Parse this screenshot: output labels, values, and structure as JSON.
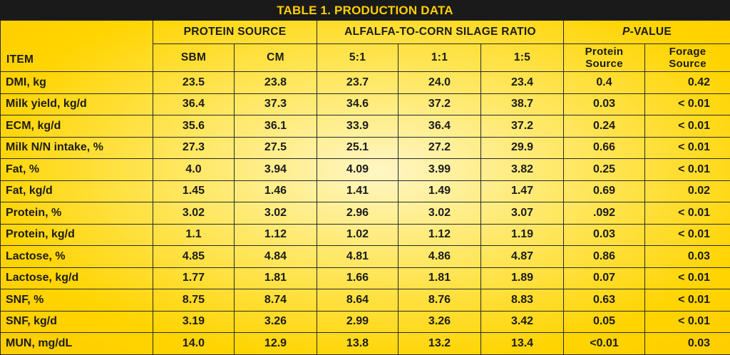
{
  "title": "TABLE 1. PRODUCTION DATA",
  "headers": {
    "item": "ITEM",
    "protein_source": "PROTEIN SOURCE",
    "ratio": "ALFALFA-TO-CORN SILAGE RATIO",
    "pvalue_p": "P",
    "pvalue_rest": "-VALUE",
    "sbm": "SBM",
    "cm": "CM",
    "r51": "5:1",
    "r11": "1:1",
    "r15": "1:5",
    "pv_protein_1": "Protein",
    "pv_protein_2": "Source",
    "pv_forage_1": "Forage",
    "pv_forage_2": "Source"
  },
  "rows": [
    [
      "DMI, kg",
      "23.5",
      "23.8",
      "23.7",
      "24.0",
      "23.4",
      "0.4",
      "0.42"
    ],
    [
      "Milk yield, kg/d",
      "36.4",
      "37.3",
      "34.6",
      "37.2",
      "38.7",
      "0.03",
      "< 0.01"
    ],
    [
      "ECM, kg/d",
      "35.6",
      "36.1",
      "33.9",
      "36.4",
      "37.2",
      "0.24",
      "< 0.01"
    ],
    [
      "Milk N/N intake, %",
      "27.3",
      "27.5",
      "25.1",
      "27.2",
      "29.9",
      "0.66",
      "< 0.01"
    ],
    [
      "Fat, %",
      "4.0",
      "3.94",
      "4.09",
      "3.99",
      "3.82",
      "0.25",
      "< 0.01"
    ],
    [
      "Fat, kg/d",
      "1.45",
      "1.46",
      "1.41",
      "1.49",
      "1.47",
      "0.69",
      "0.02"
    ],
    [
      "Protein, %",
      "3.02",
      "3.02",
      "2.96",
      "3.02",
      "3.07",
      ".092",
      "< 0.01"
    ],
    [
      "Protein, kg/d",
      "1.1",
      "1.12",
      "1.02",
      "1.12",
      "1.19",
      "0.03",
      "< 0.01"
    ],
    [
      "Lactose, %",
      "4.85",
      "4.84",
      "4.81",
      "4.86",
      "4.87",
      "0.86",
      "0.03"
    ],
    [
      "Lactose, kg/d",
      "1.77",
      "1.81",
      "1.66",
      "1.81",
      "1.89",
      "0.07",
      "< 0.01"
    ],
    [
      "SNF, %",
      "8.75",
      "8.74",
      "8.64",
      "8.76",
      "8.83",
      "0.63",
      "< 0.01"
    ],
    [
      "SNF, kg/d",
      "3.19",
      "3.26",
      "2.99",
      "3.26",
      "3.42",
      "0.05",
      "< 0.01"
    ],
    [
      "MUN, mg/dL",
      "14.0",
      "12.9",
      "13.8",
      "13.2",
      "13.4",
      "<0.01",
      "0.03"
    ]
  ]
}
